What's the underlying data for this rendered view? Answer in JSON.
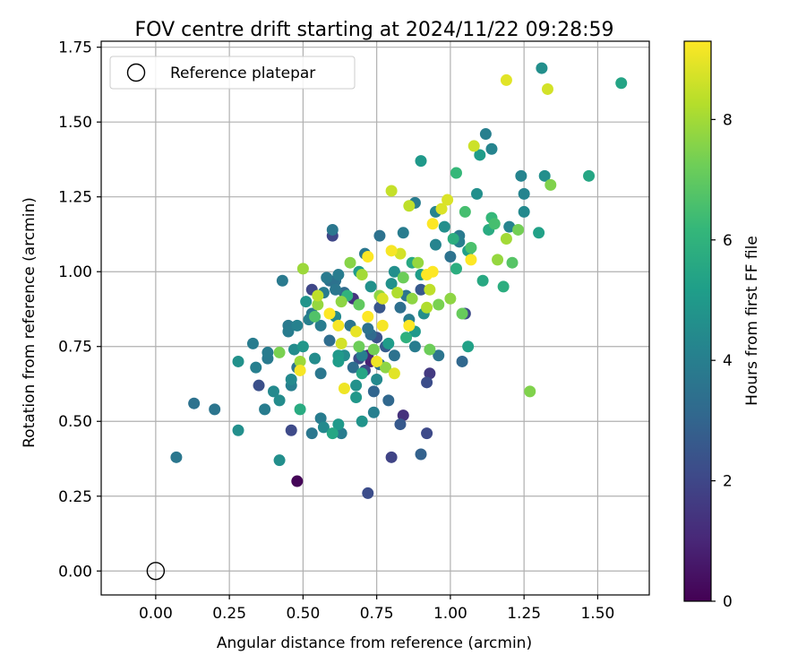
{
  "chart_data": {
    "type": "scatter",
    "title": "FOV centre drift starting at 2024/11/22 09:28:59",
    "xlabel": "Angular distance from reference (arcmin)",
    "ylabel": "Rotation from reference (arcmin)",
    "xlim": [
      -0.185,
      1.675
    ],
    "ylim": [
      -0.08,
      1.77
    ],
    "xticks": [
      0.0,
      0.25,
      0.5,
      0.75,
      1.0,
      1.25,
      1.5
    ],
    "xtick_labels": [
      "0.00",
      "0.25",
      "0.50",
      "0.75",
      "1.00",
      "1.25",
      "1.50"
    ],
    "yticks": [
      0.0,
      0.25,
      0.5,
      0.75,
      1.0,
      1.25,
      1.5,
      1.75
    ],
    "ytick_labels": [
      "0.00",
      "0.25",
      "0.50",
      "0.75",
      "1.00",
      "1.25",
      "1.50",
      "1.75"
    ],
    "grid": true,
    "legend": {
      "position": "top-left",
      "entries": [
        "Reference platepar"
      ]
    },
    "reference_point": {
      "x": 0.0,
      "y": 0.0
    },
    "colorbar": {
      "label": "Hours from first FF file",
      "min": 0,
      "max": 9.3,
      "ticks": [
        0,
        2,
        4,
        6,
        8
      ],
      "tick_labels": [
        "0",
        "2",
        "4",
        "6",
        "8"
      ],
      "colormap": "viridis",
      "colors": [
        "#440154",
        "#482878",
        "#3e4989",
        "#31688e",
        "#26828e",
        "#1f9e89",
        "#35b779",
        "#6ece58",
        "#b5de2b",
        "#fde725"
      ]
    },
    "points": [
      [
        0.48,
        0.3,
        0.1
      ],
      [
        0.72,
        0.26,
        2.2
      ],
      [
        0.07,
        0.38,
        3.7
      ],
      [
        0.13,
        0.56,
        3.5
      ],
      [
        0.2,
        0.54,
        3.6
      ],
      [
        0.28,
        0.47,
        4.6
      ],
      [
        0.42,
        0.37,
        4.6
      ],
      [
        0.46,
        0.47,
        2.1
      ],
      [
        0.53,
        0.46,
        3.7
      ],
      [
        0.56,
        0.51,
        3.9
      ],
      [
        0.57,
        0.48,
        4.4
      ],
      [
        0.6,
        0.46,
        5.5
      ],
      [
        0.62,
        0.49,
        5.0
      ],
      [
        0.63,
        0.46,
        3.9
      ],
      [
        0.7,
        0.5,
        4.8
      ],
      [
        0.74,
        0.53,
        4.0
      ],
      [
        0.8,
        0.38,
        1.9
      ],
      [
        0.83,
        0.49,
        2.6
      ],
      [
        0.84,
        0.52,
        1.3
      ],
      [
        0.9,
        0.39,
        2.9
      ],
      [
        0.92,
        0.46,
        2.1
      ],
      [
        0.92,
        0.63,
        2.2
      ],
      [
        0.93,
        0.66,
        1.6
      ],
      [
        1.04,
        0.7,
        3.1
      ],
      [
        1.27,
        0.6,
        7.5
      ],
      [
        0.28,
        0.7,
        4.7
      ],
      [
        0.33,
        0.76,
        3.9
      ],
      [
        0.34,
        0.68,
        4.0
      ],
      [
        0.35,
        0.62,
        2.3
      ],
      [
        0.37,
        0.54,
        3.9
      ],
      [
        0.38,
        0.71,
        3.8
      ],
      [
        0.38,
        0.73,
        3.9
      ],
      [
        0.4,
        0.6,
        4.4
      ],
      [
        0.42,
        0.57,
        4.5
      ],
      [
        0.42,
        0.73,
        7.4
      ],
      [
        0.45,
        0.82,
        3.8
      ],
      [
        0.45,
        0.8,
        3.9
      ],
      [
        0.46,
        0.64,
        4.4
      ],
      [
        0.46,
        0.62,
        4.0
      ],
      [
        0.47,
        0.74,
        4.5
      ],
      [
        0.48,
        0.68,
        3.6
      ],
      [
        0.48,
        0.82,
        4.1
      ],
      [
        0.49,
        0.67,
        9.2
      ],
      [
        0.49,
        0.7,
        7.9
      ],
      [
        0.49,
        0.54,
        5.7
      ],
      [
        0.5,
        0.75,
        4.9
      ],
      [
        0.51,
        0.9,
        4.8
      ],
      [
        0.52,
        0.84,
        4.0
      ],
      [
        0.53,
        0.94,
        2.0
      ],
      [
        0.53,
        0.86,
        3.8
      ],
      [
        0.54,
        0.71,
        4.5
      ],
      [
        0.54,
        0.85,
        6.7
      ],
      [
        0.55,
        0.92,
        8.4
      ],
      [
        0.55,
        0.89,
        7.8
      ],
      [
        0.56,
        0.82,
        3.9
      ],
      [
        0.56,
        0.66,
        3.7
      ],
      [
        0.57,
        0.93,
        3.9
      ],
      [
        0.59,
        0.86,
        9.3
      ],
      [
        0.59,
        0.97,
        3.5
      ],
      [
        0.59,
        0.77,
        3.3
      ],
      [
        0.6,
        1.14,
        3.7
      ],
      [
        0.6,
        1.12,
        2.0
      ],
      [
        0.61,
        0.85,
        4.4
      ],
      [
        0.61,
        0.94,
        3.7
      ],
      [
        0.61,
        0.97,
        3.5
      ],
      [
        0.62,
        0.99,
        3.9
      ],
      [
        0.62,
        0.82,
        9.2
      ],
      [
        0.62,
        0.7,
        5.1
      ],
      [
        0.62,
        0.72,
        5.0
      ],
      [
        0.63,
        0.76,
        8.7
      ],
      [
        0.63,
        0.9,
        7.7
      ],
      [
        0.64,
        0.61,
        9.1
      ],
      [
        0.64,
        0.72,
        4.5
      ],
      [
        0.65,
        0.92,
        6.0
      ],
      [
        0.66,
        1.03,
        7.6
      ],
      [
        0.67,
        0.68,
        3.3
      ],
      [
        0.68,
        0.8,
        9.0
      ],
      [
        0.68,
        0.62,
        4.7
      ],
      [
        0.68,
        0.58,
        4.9
      ],
      [
        0.69,
        0.89,
        7.0
      ],
      [
        0.69,
        1.0,
        5.1
      ],
      [
        0.69,
        0.75,
        7.2
      ],
      [
        0.7,
        0.72,
        4.0
      ],
      [
        0.7,
        0.66,
        5.5
      ],
      [
        0.7,
        0.99,
        8.0
      ],
      [
        0.71,
        1.06,
        3.7
      ],
      [
        0.71,
        0.67,
        2.1
      ],
      [
        0.72,
        1.05,
        9.3
      ],
      [
        0.72,
        0.85,
        9.3
      ],
      [
        0.73,
        0.79,
        3.2
      ],
      [
        0.73,
        0.95,
        4.7
      ],
      [
        0.74,
        0.74,
        7.3
      ],
      [
        0.74,
        0.6,
        3.0
      ],
      [
        0.75,
        0.7,
        9.1
      ],
      [
        0.75,
        0.64,
        4.4
      ],
      [
        0.76,
        1.12,
        3.5
      ],
      [
        0.76,
        0.92,
        7.7
      ],
      [
        0.77,
        0.82,
        9.2
      ],
      [
        0.77,
        0.91,
        8.8
      ],
      [
        0.78,
        0.68,
        7.7
      ],
      [
        0.79,
        0.76,
        5.1
      ],
      [
        0.79,
        0.57,
        3.1
      ],
      [
        0.8,
        0.96,
        4.7
      ],
      [
        0.8,
        1.27,
        8.5
      ],
      [
        0.8,
        1.07,
        9.2
      ],
      [
        0.81,
        1.0,
        4.6
      ],
      [
        0.81,
        0.72,
        3.5
      ],
      [
        0.81,
        0.66,
        8.9
      ],
      [
        0.82,
        0.93,
        8.2
      ],
      [
        0.83,
        1.06,
        8.7
      ],
      [
        0.84,
        1.13,
        3.9
      ],
      [
        0.84,
        0.98,
        7.2
      ],
      [
        0.85,
        0.92,
        3.6
      ],
      [
        0.85,
        0.78,
        5.9
      ],
      [
        0.86,
        1.22,
        8.4
      ],
      [
        0.86,
        0.82,
        9.3
      ],
      [
        0.87,
        0.91,
        7.7
      ],
      [
        0.87,
        1.03,
        5.6
      ],
      [
        0.88,
        0.75,
        3.9
      ],
      [
        0.88,
        1.23,
        3.9
      ],
      [
        0.89,
        1.03,
        7.8
      ],
      [
        0.9,
        1.37,
        5.0
      ],
      [
        0.9,
        0.99,
        5.1
      ],
      [
        0.91,
        0.86,
        4.6
      ],
      [
        0.92,
        0.88,
        8.2
      ],
      [
        0.92,
        0.99,
        9.3
      ],
      [
        0.93,
        0.74,
        7.2
      ],
      [
        0.93,
        0.94,
        8.4
      ],
      [
        0.94,
        1.0,
        9.3
      ],
      [
        0.94,
        1.16,
        9.3
      ],
      [
        0.95,
        1.2,
        4.2
      ],
      [
        0.95,
        1.09,
        4.2
      ],
      [
        0.96,
        0.72,
        3.6
      ],
      [
        0.97,
        1.21,
        8.8
      ],
      [
        0.98,
        1.15,
        4.6
      ],
      [
        0.99,
        1.24,
        8.8
      ],
      [
        1.0,
        1.05,
        3.5
      ],
      [
        1.0,
        0.91,
        7.7
      ],
      [
        1.01,
        1.11,
        5.8
      ],
      [
        1.02,
        1.33,
        6.2
      ],
      [
        1.02,
        1.01,
        5.8
      ],
      [
        1.03,
        1.1,
        4.0
      ],
      [
        1.03,
        1.12,
        3.8
      ],
      [
        1.04,
        0.86,
        7.1
      ],
      [
        1.05,
        0.86,
        2.1
      ],
      [
        1.05,
        1.2,
        6.5
      ],
      [
        1.06,
        1.07,
        5.2
      ],
      [
        1.06,
        0.75,
        5.3
      ],
      [
        1.07,
        1.08,
        6.6
      ],
      [
        1.07,
        1.04,
        9.3
      ],
      [
        1.08,
        1.42,
        8.6
      ],
      [
        1.09,
        1.26,
        4.6
      ],
      [
        1.1,
        1.39,
        5.1
      ],
      [
        1.11,
        0.97,
        5.6
      ],
      [
        1.12,
        1.46,
        4.0
      ],
      [
        1.13,
        1.14,
        5.7
      ],
      [
        1.14,
        1.18,
        6.2
      ],
      [
        1.14,
        1.41,
        4.2
      ],
      [
        1.15,
        1.16,
        6.5
      ],
      [
        1.16,
        1.04,
        7.8
      ],
      [
        1.18,
        0.95,
        5.8
      ],
      [
        1.19,
        1.11,
        8.0
      ],
      [
        1.19,
        1.64,
        8.9
      ],
      [
        1.2,
        1.15,
        4.2
      ],
      [
        1.21,
        1.03,
        6.8
      ],
      [
        1.23,
        1.14,
        7.3
      ],
      [
        1.24,
        1.32,
        4.2
      ],
      [
        1.25,
        1.26,
        4.2
      ],
      [
        1.25,
        1.2,
        4.4
      ],
      [
        1.3,
        1.13,
        5.3
      ],
      [
        1.31,
        1.68,
        4.6
      ],
      [
        1.32,
        1.32,
        4.6
      ],
      [
        1.33,
        1.61,
        8.7
      ],
      [
        1.34,
        1.29,
        7.5
      ],
      [
        1.47,
        1.32,
        5.5
      ],
      [
        1.58,
        1.63,
        5.4
      ],
      [
        0.43,
        0.97,
        3.8
      ],
      [
        0.5,
        1.01,
        7.9
      ],
      [
        0.58,
        0.98,
        3.8
      ],
      [
        0.64,
        0.93,
        3.2
      ],
      [
        0.66,
        0.82,
        3.6
      ],
      [
        0.67,
        0.91,
        1.4
      ],
      [
        0.72,
        0.81,
        3.5
      ],
      [
        0.75,
        0.78,
        2.4
      ],
      [
        0.76,
        0.88,
        2.5
      ],
      [
        0.78,
        0.75,
        2.7
      ],
      [
        0.83,
        0.88,
        3.4
      ],
      [
        0.86,
        0.84,
        3.9
      ],
      [
        0.88,
        0.8,
        5.0
      ],
      [
        0.9,
        0.94,
        2.6
      ],
      [
        0.96,
        0.89,
        7.4
      ],
      [
        0.72,
        0.72,
        1.0
      ],
      [
        0.73,
        0.7,
        0.9
      ],
      [
        0.76,
        0.69,
        3.4
      ],
      [
        0.69,
        0.71,
        2.2
      ]
    ]
  }
}
